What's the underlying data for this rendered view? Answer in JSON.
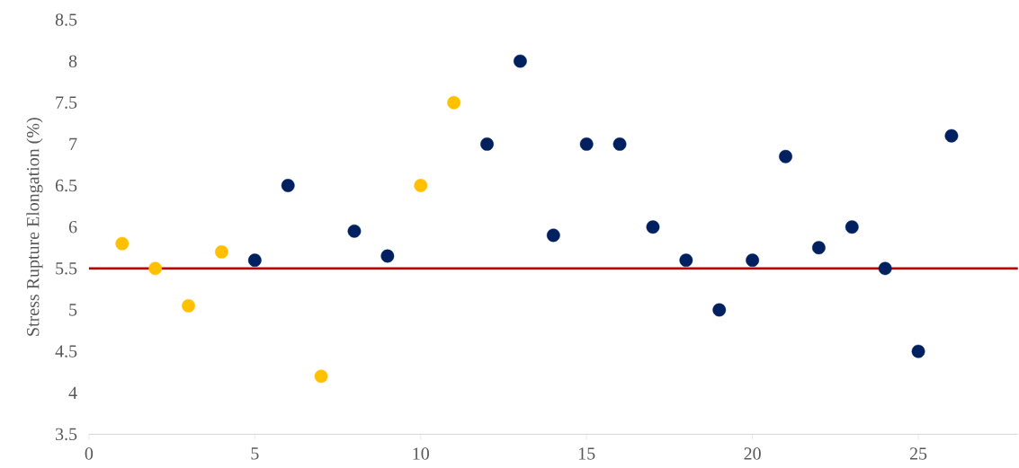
{
  "chart_data": {
    "type": "scatter",
    "ylabel": "Stress Rupture Elongation (%)",
    "xlim": [
      0,
      28
    ],
    "xticks": [
      0,
      5,
      10,
      15,
      20,
      25
    ],
    "ylim": [
      3.5,
      8.5
    ],
    "yticks": [
      3.5,
      4,
      4.5,
      5,
      5.5,
      6,
      6.5,
      7,
      7.5,
      8,
      8.5
    ],
    "grid": false,
    "marker": "circle",
    "series": [
      {
        "color": "#ffc000",
        "x": [
          1,
          2,
          3,
          4,
          7,
          10,
          11
        ],
        "values": [
          5.8,
          5.5,
          5.05,
          5.7,
          4.2,
          6.5,
          7.5
        ]
      },
      {
        "color": "#002060",
        "x": [
          5,
          6,
          8,
          9,
          12,
          13,
          14,
          15,
          16,
          17,
          18,
          19,
          20,
          21,
          22,
          23,
          24,
          25,
          26
        ],
        "values": [
          5.6,
          6.5,
          5.95,
          5.65,
          7,
          8,
          5.9,
          7,
          7,
          6,
          5.6,
          5,
          5.6,
          6.85,
          5.75,
          6,
          5.5,
          4.5,
          7.1
        ]
      }
    ],
    "ref_lines": [
      {
        "axis": "y",
        "value": 5.5,
        "color": "#c00000"
      }
    ]
  }
}
